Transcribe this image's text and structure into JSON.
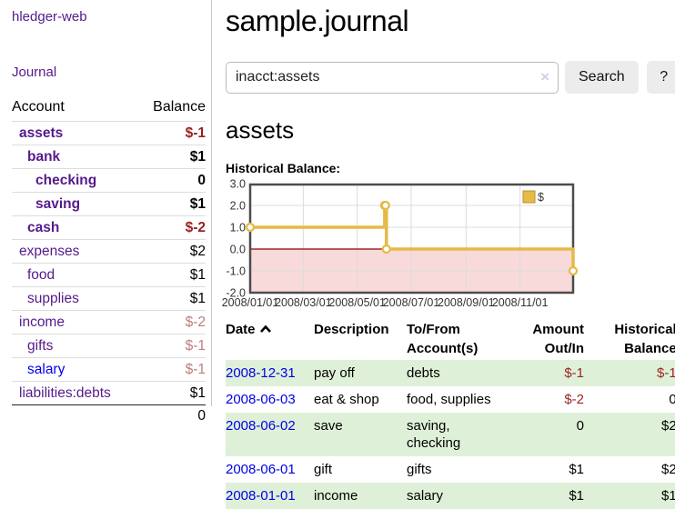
{
  "brand": "hledger-web",
  "nav": {
    "journal": "Journal"
  },
  "sidebar": {
    "col_account": "Account",
    "col_balance": "Balance",
    "rows": [
      {
        "name": "assets",
        "balance": "$-1",
        "depth": 1,
        "bold": true
      },
      {
        "name": "bank",
        "balance": "$1",
        "depth": 2,
        "bold": true
      },
      {
        "name": "checking",
        "balance": "0",
        "depth": 3,
        "bold": true
      },
      {
        "name": "saving",
        "balance": "$1",
        "depth": 3,
        "bold": true
      },
      {
        "name": "cash",
        "balance": "$-2",
        "depth": 2,
        "bold": true
      },
      {
        "name": "expenses",
        "balance": "$2",
        "depth": 1,
        "bold": false
      },
      {
        "name": "food",
        "balance": "$1",
        "depth": 2,
        "bold": false
      },
      {
        "name": "supplies",
        "balance": "$1",
        "depth": 2,
        "bold": false
      },
      {
        "name": "income",
        "balance": "$-2",
        "depth": 1,
        "bold": false
      },
      {
        "name": "gifts",
        "balance": "$-1",
        "depth": 2,
        "bold": false
      },
      {
        "name": "salary",
        "balance": "$-1",
        "depth": 2,
        "bold": false,
        "link_color": "#0000ee"
      },
      {
        "name": "liabilities:debts",
        "balance": "$1",
        "depth": 1,
        "bold": false
      }
    ],
    "total": "0"
  },
  "main": {
    "title": "sample.journal",
    "search": {
      "value": "inacct:assets",
      "clear_icon": "×",
      "search_button": "Search",
      "help_button": "?"
    },
    "account_heading": "assets",
    "chart_heading": "Historical Balance:"
  },
  "chart_data": {
    "type": "line",
    "title": "Historical Balance",
    "step": true,
    "series": [
      {
        "name": "$",
        "color": "#e5ba45",
        "points": [
          {
            "date": "2008-01-01",
            "value": 1
          },
          {
            "date": "2008-06-01",
            "value": 2
          },
          {
            "date": "2008-06-02",
            "value": 2
          },
          {
            "date": "2008-06-03",
            "value": 0
          },
          {
            "date": "2008-12-31",
            "value": -1
          }
        ]
      }
    ],
    "xlim": [
      "2008-01-01",
      "2008-12-31"
    ],
    "ylim": [
      -2,
      3
    ],
    "x_ticks": [
      {
        "date": "2008-01-01",
        "label": "2008/01/01"
      },
      {
        "date": "2008-03-01",
        "label": "2008/03/01"
      },
      {
        "date": "2008-05-01",
        "label": "2008/05/01"
      },
      {
        "date": "2008-07-01",
        "label": "2008/07/01"
      },
      {
        "date": "2008-09-01",
        "label": "2008/09/01"
      },
      {
        "date": "2008-11-01",
        "label": "2008/11/01"
      }
    ],
    "y_ticks": [
      3,
      2,
      1,
      0,
      -1,
      -2
    ],
    "y_tick_labels": [
      "3.0",
      "2.0",
      "1.0",
      "0.0",
      "-1.0",
      "-2.0"
    ],
    "legend_position": "top-right",
    "grid": true,
    "negative_region_color": "#f9dada",
    "zero_line_color": "#8b0000",
    "grid_color": "#dcdcdc",
    "border_color": "#4d4d4d",
    "legend_box_border": "#b8912c"
  },
  "register": {
    "columns": {
      "date": "Date",
      "description": "Description",
      "tofrom_l1": "To/From",
      "tofrom_l2": "Account(s)",
      "amount_l1": "Amount",
      "amount_l2": "Out/In",
      "hist_l1": "Historical",
      "hist_l2": "Balance"
    },
    "rows": [
      {
        "date": "2008-12-31",
        "description": "pay off",
        "accounts": "debts",
        "amount": "$-1",
        "balance": "$-1"
      },
      {
        "date": "2008-06-03",
        "description": "eat & shop",
        "accounts": "food, supplies",
        "amount": "$-2",
        "balance": "0"
      },
      {
        "date": "2008-06-02",
        "description": "save",
        "accounts": "saving,\nchecking",
        "amount": "0",
        "balance": "$2"
      },
      {
        "date": "2008-06-01",
        "description": "gift",
        "accounts": "gifts",
        "amount": "$1",
        "balance": "$2"
      },
      {
        "date": "2008-01-01",
        "description": "income",
        "accounts": "salary",
        "amount": "$1",
        "balance": "$1"
      }
    ]
  }
}
